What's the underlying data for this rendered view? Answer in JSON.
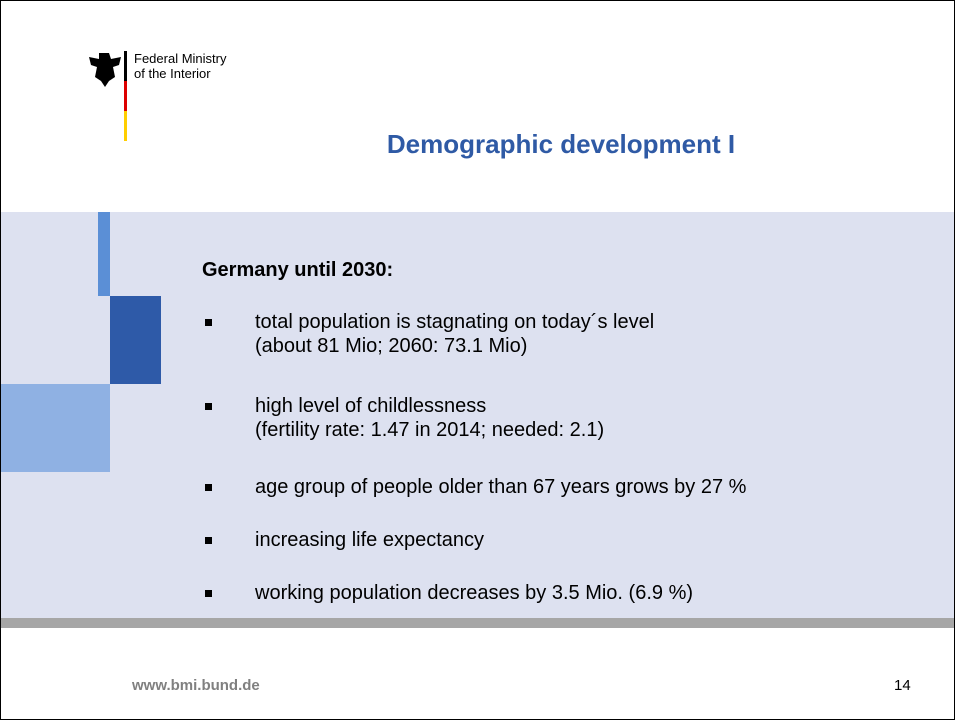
{
  "header": {
    "ministry_line1": "Federal Ministry",
    "ministry_line2": "of the Interior",
    "title": "Demographic development I"
  },
  "content": {
    "subtitle": "Germany until 2030:",
    "items": [
      [
        "total population is stagnating on today´s level",
        "(about 81 Mio; 2060: 73.1 Mio)"
      ],
      [
        "high level of childlessness",
        "(fertility rate: 1.47 in 2014; needed: 2.1)"
      ],
      [
        "age group of people older than 67 years grows by 27 %"
      ],
      [
        "increasing life expectancy"
      ],
      [
        "working population decreases by 3.5 Mio. (6.9 %)"
      ]
    ]
  },
  "footer": {
    "url": "www.bmi.bund.de",
    "page": "14"
  }
}
